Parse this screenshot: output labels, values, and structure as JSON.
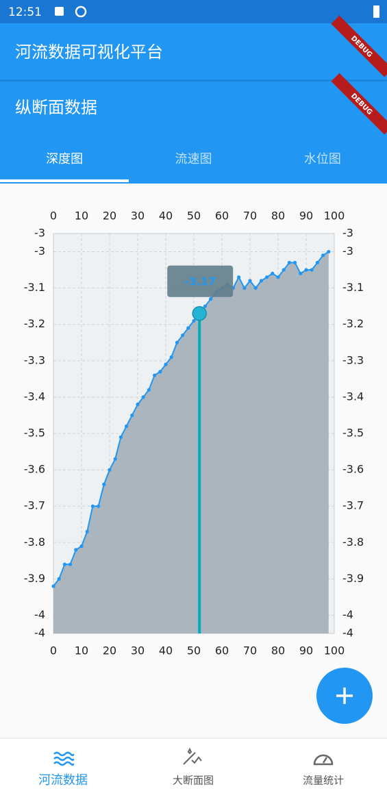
{
  "status_bar": {
    "time": "12:51"
  },
  "app_bar": {
    "title": "河流数据可视化平台"
  },
  "page_header": {
    "title": "纵断面数据"
  },
  "debug_banner": "DEBUG",
  "tabs": [
    "深度图",
    "流速图",
    "水位图"
  ],
  "chart_data": {
    "type": "area",
    "x": [
      0,
      2,
      4,
      6,
      8,
      10,
      12,
      14,
      16,
      18,
      20,
      22,
      24,
      26,
      28,
      30,
      32,
      34,
      36,
      38,
      40,
      42,
      44,
      46,
      48,
      50,
      52,
      54,
      56,
      58,
      60,
      62,
      64,
      66,
      68,
      70,
      72,
      74,
      76,
      78,
      80,
      82,
      84,
      86,
      88,
      90,
      92,
      94,
      96,
      98
    ],
    "values": [
      -3.92,
      -3.9,
      -3.86,
      -3.86,
      -3.82,
      -3.81,
      -3.77,
      -3.7,
      -3.7,
      -3.64,
      -3.6,
      -3.57,
      -3.51,
      -3.48,
      -3.45,
      -3.42,
      -3.4,
      -3.38,
      -3.34,
      -3.33,
      -3.31,
      -3.29,
      -3.25,
      -3.23,
      -3.21,
      -3.19,
      -3.17,
      -3.15,
      -3.13,
      -3.11,
      -3.1,
      -3.09,
      -3.1,
      -3.07,
      -3.1,
      -3.08,
      -3.1,
      -3.08,
      -3.07,
      -3.06,
      -3.07,
      -3.05,
      -3.03,
      -3.03,
      -3.06,
      -3.05,
      -3.05,
      -3.03,
      -3.01,
      -3.0
    ],
    "color": "#2196f3",
    "fill": "#9eaab3",
    "xlim": [
      0,
      100
    ],
    "xticks": [
      0,
      10,
      20,
      30,
      40,
      50,
      60,
      70,
      80,
      90,
      100
    ],
    "ylim": [
      -4.05,
      -2.95
    ],
    "yticks": [
      {
        "value": -2.95,
        "label": "-3"
      },
      -3,
      -3.1,
      -3.2,
      -3.3,
      -3.4,
      -3.5,
      -3.6,
      -3.7,
      -3.8,
      -3.9,
      -4,
      {
        "value": -4.05,
        "label": "-4"
      }
    ],
    "grid": true,
    "tooltip": {
      "x": 52,
      "value": -3.17
    }
  },
  "bottom_nav": [
    "河流数据",
    "大断面图",
    "流量统计"
  ]
}
